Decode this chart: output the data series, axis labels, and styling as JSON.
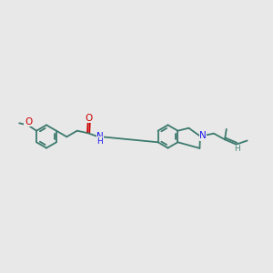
{
  "background_color": "#e8e8e8",
  "bond_color": "#3d7a6e",
  "bond_width": 1.3,
  "O_color": "#cc0000",
  "N_color": "#1a1aee",
  "H_color": "#4a8a7a",
  "figsize": [
    3.0,
    3.0
  ],
  "dpi": 100,
  "xlim": [
    0,
    10
  ],
  "ylim": [
    2,
    8
  ]
}
